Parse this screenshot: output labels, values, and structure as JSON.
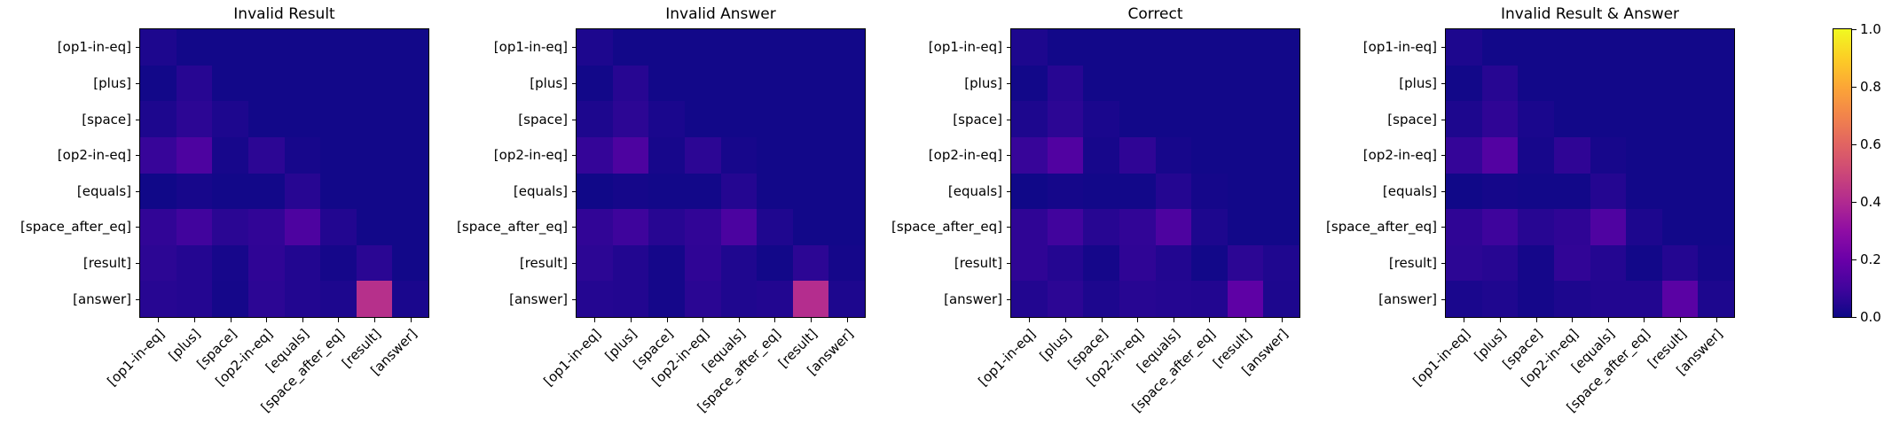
{
  "figure": {
    "background": "#ffffff",
    "text_color": "#000000",
    "axes_edge_color": "#000000"
  },
  "chart_data": {
    "type": "heatmap",
    "colormap": "plasma",
    "colormap_stops": [
      "#0d0887",
      "#41049d",
      "#6a00a8",
      "#8f0da4",
      "#b12a90",
      "#cc4778",
      "#e16462",
      "#f2844b",
      "#fca636",
      "#fcce25",
      "#f0f921"
    ],
    "vmin": 0.0,
    "vmax": 1.0,
    "x_labels": [
      "[op1-in-eq]",
      "[plus]",
      "[space]",
      "[op2-in-eq]",
      "[equals]",
      "[space_after_eq]",
      "[result]",
      "[answer]"
    ],
    "y_labels": [
      "[op1-in-eq]",
      "[plus]",
      "[space]",
      "[op2-in-eq]",
      "[equals]",
      "[space_after_eq]",
      "[result]",
      "[answer]"
    ],
    "x_label_rotation_deg": 45,
    "panels": [
      {
        "title": "Invalid Result",
        "values": [
          [
            0.03,
            0.01,
            0.01,
            0.01,
            0.01,
            0.01,
            0.01,
            0.01
          ],
          [
            0.01,
            0.05,
            0.01,
            0.01,
            0.01,
            0.01,
            0.01,
            0.01
          ],
          [
            0.03,
            0.06,
            0.03,
            0.01,
            0.01,
            0.01,
            0.01,
            0.01
          ],
          [
            0.08,
            0.13,
            0.02,
            0.06,
            0.02,
            0.01,
            0.01,
            0.01
          ],
          [
            0.005,
            0.02,
            0.01,
            0.01,
            0.05,
            0.01,
            0.01,
            0.01
          ],
          [
            0.07,
            0.1,
            0.055,
            0.07,
            0.13,
            0.04,
            0.01,
            0.01
          ],
          [
            0.06,
            0.045,
            0.02,
            0.065,
            0.04,
            0.015,
            0.055,
            0.01
          ],
          [
            0.05,
            0.045,
            0.015,
            0.06,
            0.04,
            0.03,
            0.42,
            0.025
          ]
        ]
      },
      {
        "title": "Invalid Answer",
        "values": [
          [
            0.03,
            0.01,
            0.01,
            0.01,
            0.01,
            0.01,
            0.01,
            0.01
          ],
          [
            0.01,
            0.05,
            0.01,
            0.01,
            0.01,
            0.01,
            0.01,
            0.01
          ],
          [
            0.03,
            0.06,
            0.025,
            0.01,
            0.01,
            0.01,
            0.01,
            0.01
          ],
          [
            0.075,
            0.13,
            0.02,
            0.06,
            0.02,
            0.01,
            0.01,
            0.01
          ],
          [
            0.005,
            0.015,
            0.01,
            0.01,
            0.045,
            0.01,
            0.01,
            0.01
          ],
          [
            0.07,
            0.095,
            0.05,
            0.07,
            0.125,
            0.035,
            0.01,
            0.01
          ],
          [
            0.06,
            0.04,
            0.015,
            0.065,
            0.035,
            0.01,
            0.06,
            0.015
          ],
          [
            0.045,
            0.04,
            0.015,
            0.055,
            0.035,
            0.04,
            0.41,
            0.03
          ]
        ]
      },
      {
        "title": "Correct",
        "values": [
          [
            0.03,
            0.01,
            0.01,
            0.01,
            0.01,
            0.01,
            0.01,
            0.01
          ],
          [
            0.01,
            0.05,
            0.01,
            0.01,
            0.01,
            0.01,
            0.01,
            0.01
          ],
          [
            0.03,
            0.06,
            0.025,
            0.01,
            0.01,
            0.01,
            0.01,
            0.01
          ],
          [
            0.08,
            0.14,
            0.02,
            0.065,
            0.02,
            0.01,
            0.01,
            0.01
          ],
          [
            0.005,
            0.015,
            0.01,
            0.01,
            0.045,
            0.015,
            0.01,
            0.01
          ],
          [
            0.065,
            0.1,
            0.05,
            0.07,
            0.13,
            0.03,
            0.01,
            0.01
          ],
          [
            0.065,
            0.045,
            0.015,
            0.065,
            0.04,
            0.01,
            0.06,
            0.035
          ],
          [
            0.04,
            0.06,
            0.03,
            0.05,
            0.045,
            0.04,
            0.17,
            0.03
          ]
        ]
      },
      {
        "title": "Invalid Result & Answer",
        "values": [
          [
            0.03,
            0.01,
            0.01,
            0.01,
            0.01,
            0.01,
            0.01,
            0.01
          ],
          [
            0.01,
            0.05,
            0.01,
            0.01,
            0.01,
            0.01,
            0.01,
            0.01
          ],
          [
            0.03,
            0.065,
            0.025,
            0.01,
            0.01,
            0.01,
            0.01,
            0.01
          ],
          [
            0.075,
            0.145,
            0.02,
            0.065,
            0.02,
            0.01,
            0.01,
            0.01
          ],
          [
            0.005,
            0.015,
            0.01,
            0.01,
            0.045,
            0.01,
            0.01,
            0.01
          ],
          [
            0.065,
            0.095,
            0.05,
            0.065,
            0.135,
            0.03,
            0.01,
            0.01
          ],
          [
            0.06,
            0.05,
            0.015,
            0.07,
            0.045,
            0.01,
            0.045,
            0.015
          ],
          [
            0.025,
            0.035,
            0.015,
            0.03,
            0.04,
            0.04,
            0.16,
            0.03
          ]
        ]
      }
    ],
    "colorbar": {
      "orientation": "vertical",
      "position": "right",
      "tick_labels": [
        "0.0",
        "0.2",
        "0.4",
        "0.6",
        "0.8",
        "1.0"
      ],
      "tick_values": [
        0.0,
        0.2,
        0.4,
        0.6,
        0.8,
        1.0
      ]
    }
  }
}
